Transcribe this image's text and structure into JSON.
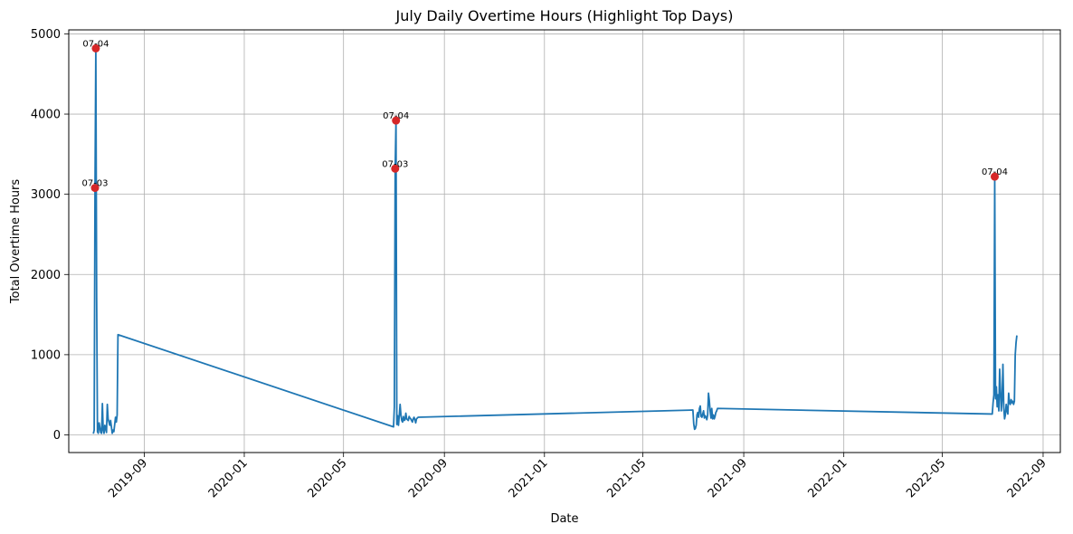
{
  "chart_data": {
    "type": "line",
    "title": "July Daily Overtime Hours (Highlight Top Days)",
    "xlabel": "Date",
    "ylabel": "Total Overtime Hours",
    "xlim": [
      "2019-06-01",
      "2022-09-22"
    ],
    "ylim": [
      -220,
      5050
    ],
    "grid": true,
    "line_color": "#1f77b4",
    "highlight_color": "#d62728",
    "x_ticks": [
      {
        "date": "2019-09-01",
        "label": "2019-09"
      },
      {
        "date": "2020-01-01",
        "label": "2020-01"
      },
      {
        "date": "2020-05-01",
        "label": "2020-05"
      },
      {
        "date": "2020-09-01",
        "label": "2020-09"
      },
      {
        "date": "2021-01-01",
        "label": "2021-01"
      },
      {
        "date": "2021-05-01",
        "label": "2021-05"
      },
      {
        "date": "2021-09-01",
        "label": "2021-09"
      },
      {
        "date": "2022-01-01",
        "label": "2022-01"
      },
      {
        "date": "2022-05-01",
        "label": "2022-05"
      },
      {
        "date": "2022-09-01",
        "label": "2022-09"
      }
    ],
    "y_ticks": [
      {
        "value": 0,
        "label": "0"
      },
      {
        "value": 1000,
        "label": "1000"
      },
      {
        "value": 2000,
        "label": "2000"
      },
      {
        "value": 3000,
        "label": "3000"
      },
      {
        "value": 4000,
        "label": "4000"
      },
      {
        "value": 5000,
        "label": "5000"
      }
    ],
    "series": [
      {
        "points": [
          [
            "2019-07-01",
            15
          ],
          [
            "2019-07-02",
            60
          ],
          [
            "2019-07-03",
            3080
          ],
          [
            "2019-07-04",
            4820
          ],
          [
            "2019-07-05",
            1720
          ],
          [
            "2019-07-06",
            40
          ],
          [
            "2019-07-07",
            20
          ],
          [
            "2019-07-08",
            150
          ],
          [
            "2019-07-09",
            90
          ],
          [
            "2019-07-10",
            30
          ],
          [
            "2019-07-11",
            20
          ],
          [
            "2019-07-12",
            390
          ],
          [
            "2019-07-13",
            60
          ],
          [
            "2019-07-14",
            20
          ],
          [
            "2019-07-15",
            120
          ],
          [
            "2019-07-16",
            80
          ],
          [
            "2019-07-17",
            30
          ],
          [
            "2019-07-18",
            380
          ],
          [
            "2019-07-19",
            200
          ],
          [
            "2019-07-20",
            160
          ],
          [
            "2019-07-21",
            120
          ],
          [
            "2019-07-22",
            180
          ],
          [
            "2019-07-23",
            100
          ],
          [
            "2019-07-24",
            20
          ],
          [
            "2019-07-25",
            60
          ],
          [
            "2019-07-26",
            40
          ],
          [
            "2019-07-27",
            130
          ],
          [
            "2019-07-28",
            220
          ],
          [
            "2019-07-29",
            160
          ],
          [
            "2019-07-30",
            250
          ],
          [
            "2019-07-31",
            1250
          ],
          [
            "2020-07-01",
            100
          ],
          [
            "2020-07-02",
            350
          ],
          [
            "2020-07-03",
            3320
          ],
          [
            "2020-07-04",
            3920
          ],
          [
            "2020-07-05",
            130
          ],
          [
            "2020-07-06",
            240
          ],
          [
            "2020-07-07",
            120
          ],
          [
            "2020-07-08",
            240
          ],
          [
            "2020-07-09",
            380
          ],
          [
            "2020-07-10",
            250
          ],
          [
            "2020-07-11",
            180
          ],
          [
            "2020-07-12",
            160
          ],
          [
            "2020-07-13",
            230
          ],
          [
            "2020-07-14",
            180
          ],
          [
            "2020-07-15",
            190
          ],
          [
            "2020-07-16",
            270
          ],
          [
            "2020-07-17",
            200
          ],
          [
            "2020-07-18",
            190
          ],
          [
            "2020-07-19",
            180
          ],
          [
            "2020-07-20",
            230
          ],
          [
            "2020-07-21",
            210
          ],
          [
            "2020-07-22",
            200
          ],
          [
            "2020-07-23",
            180
          ],
          [
            "2020-07-24",
            160
          ],
          [
            "2020-07-25",
            200
          ],
          [
            "2020-07-26",
            220
          ],
          [
            "2020-07-27",
            190
          ],
          [
            "2020-07-28",
            150
          ],
          [
            "2020-07-29",
            200
          ],
          [
            "2020-07-30",
            210
          ],
          [
            "2020-07-31",
            220
          ],
          [
            "2021-07-01",
            310
          ],
          [
            "2021-07-02",
            140
          ],
          [
            "2021-07-03",
            70
          ],
          [
            "2021-07-04",
            80
          ],
          [
            "2021-07-05",
            120
          ],
          [
            "2021-07-06",
            250
          ],
          [
            "2021-07-07",
            280
          ],
          [
            "2021-07-08",
            220
          ],
          [
            "2021-07-09",
            330
          ],
          [
            "2021-07-10",
            360
          ],
          [
            "2021-07-11",
            230
          ],
          [
            "2021-07-12",
            220
          ],
          [
            "2021-07-13",
            260
          ],
          [
            "2021-07-14",
            300
          ],
          [
            "2021-07-15",
            210
          ],
          [
            "2021-07-16",
            240
          ],
          [
            "2021-07-17",
            220
          ],
          [
            "2021-07-18",
            190
          ],
          [
            "2021-07-19",
            250
          ],
          [
            "2021-07-20",
            520
          ],
          [
            "2021-07-21",
            430
          ],
          [
            "2021-07-22",
            300
          ],
          [
            "2021-07-23",
            210
          ],
          [
            "2021-07-24",
            330
          ],
          [
            "2021-07-25",
            200
          ],
          [
            "2021-07-26",
            250
          ],
          [
            "2021-07-27",
            200
          ],
          [
            "2021-07-28",
            230
          ],
          [
            "2021-07-29",
            280
          ],
          [
            "2021-07-30",
            300
          ],
          [
            "2021-07-31",
            330
          ],
          [
            "2022-07-01",
            260
          ],
          [
            "2022-07-02",
            400
          ],
          [
            "2022-07-03",
            500
          ],
          [
            "2022-07-04",
            3220
          ],
          [
            "2022-07-05",
            450
          ],
          [
            "2022-07-06",
            600
          ],
          [
            "2022-07-07",
            350
          ],
          [
            "2022-07-08",
            500
          ],
          [
            "2022-07-09",
            300
          ],
          [
            "2022-07-10",
            820
          ],
          [
            "2022-07-11",
            560
          ],
          [
            "2022-07-12",
            300
          ],
          [
            "2022-07-13",
            450
          ],
          [
            "2022-07-14",
            880
          ],
          [
            "2022-07-15",
            350
          ],
          [
            "2022-07-16",
            200
          ],
          [
            "2022-07-17",
            250
          ],
          [
            "2022-07-18",
            380
          ],
          [
            "2022-07-19",
            300
          ],
          [
            "2022-07-20",
            260
          ],
          [
            "2022-07-21",
            520
          ],
          [
            "2022-07-22",
            400
          ],
          [
            "2022-07-23",
            380
          ],
          [
            "2022-07-24",
            440
          ],
          [
            "2022-07-25",
            400
          ],
          [
            "2022-07-26",
            420
          ],
          [
            "2022-07-27",
            380
          ],
          [
            "2022-07-28",
            420
          ],
          [
            "2022-07-29",
            1000
          ],
          [
            "2022-07-30",
            1150
          ],
          [
            "2022-07-31",
            1240
          ]
        ]
      }
    ],
    "highlights": [
      {
        "date": "2019-07-03",
        "value": 3080,
        "label": "07-03"
      },
      {
        "date": "2019-07-04",
        "value": 4820,
        "label": "07-04"
      },
      {
        "date": "2020-07-03",
        "value": 3320,
        "label": "07-03"
      },
      {
        "date": "2020-07-04",
        "value": 3920,
        "label": "07-04"
      },
      {
        "date": "2022-07-04",
        "value": 3220,
        "label": "07-04"
      }
    ]
  }
}
